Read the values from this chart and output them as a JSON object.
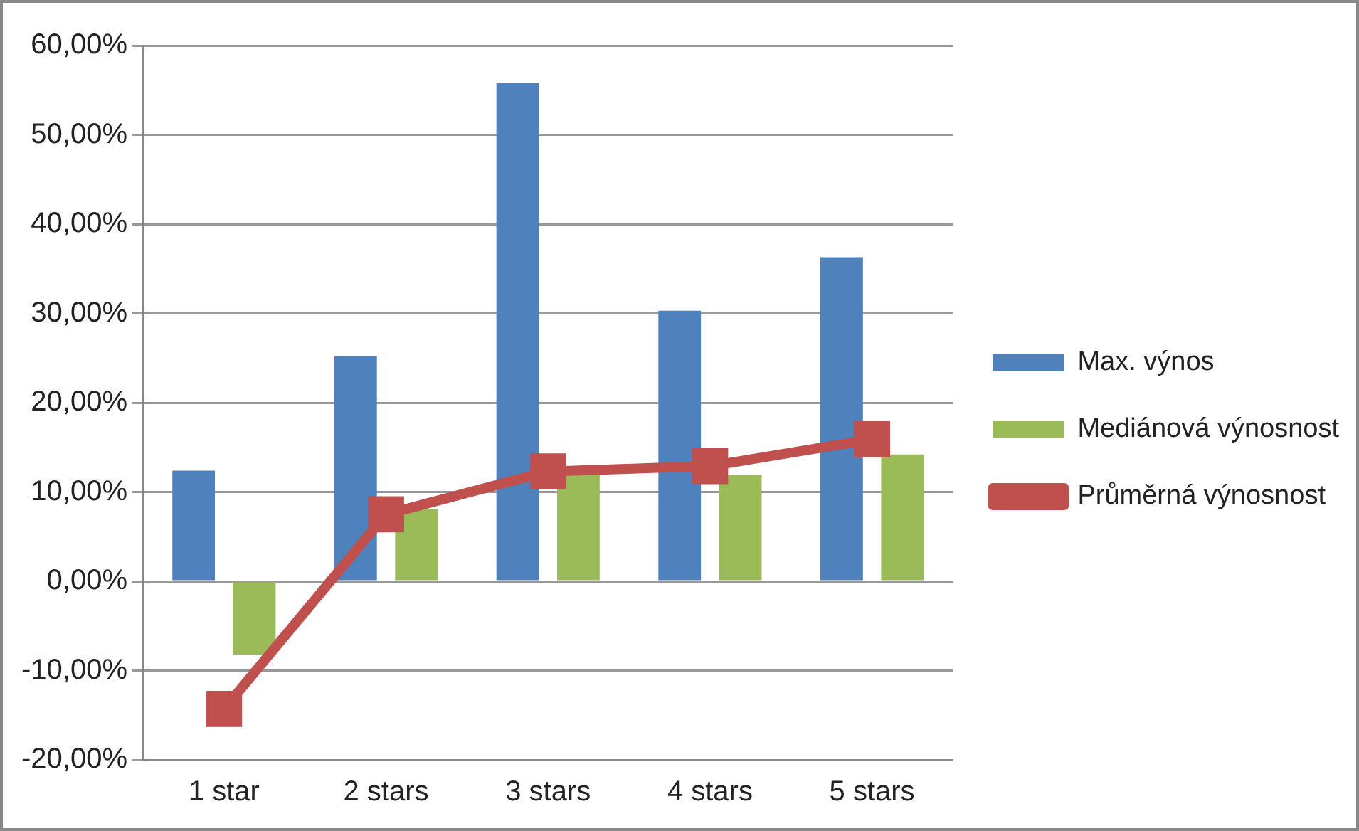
{
  "chart_data": {
    "type": "bar",
    "categories": [
      "1 star",
      "2 stars",
      "3 stars",
      "4 stars",
      "5 stars"
    ],
    "series": [
      {
        "name": "Max. výnos",
        "color": "#4f81bd",
        "values": [
          12.4,
          25.2,
          55.8,
          30.3,
          36.3
        ]
      },
      {
        "name": "Mediánová výnosnost",
        "color": "#9bbb59",
        "values": [
          -8.2,
          8.1,
          11.9,
          11.9,
          14.2
        ]
      },
      {
        "name": "Průměrná výnosnost",
        "color": "#c0504d",
        "type": "line",
        "marker": "square",
        "values": [
          -14.3,
          7.5,
          12.3,
          12.9,
          15.9
        ]
      }
    ],
    "ylim": [
      -20,
      60
    ],
    "yticks": [
      {
        "value": -20,
        "label": "-20,00%"
      },
      {
        "value": -10,
        "label": "-10,00%"
      },
      {
        "value": 0,
        "label": "0,00%"
      },
      {
        "value": 10,
        "label": "10,00%"
      },
      {
        "value": 20,
        "label": "20,00%"
      },
      {
        "value": 30,
        "label": "30,00%"
      },
      {
        "value": 40,
        "label": "40,00%"
      },
      {
        "value": 50,
        "label": "50,00%"
      },
      {
        "value": 60,
        "label": "60,00%"
      }
    ],
    "grid": "y",
    "legend": "right"
  }
}
